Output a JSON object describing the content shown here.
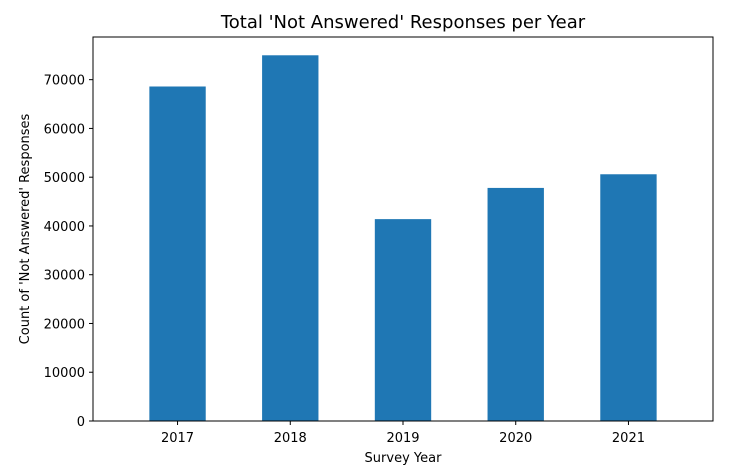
{
  "chart_data": {
    "type": "bar",
    "title": "Total 'Not Answered' Responses per Year",
    "xlabel": "Survey Year",
    "ylabel": "Count of 'Not Answered' Responses",
    "categories": [
      "2017",
      "2018",
      "2019",
      "2020",
      "2021"
    ],
    "values": [
      68600,
      75000,
      41400,
      47800,
      50600
    ],
    "ylim": [
      0,
      78750
    ],
    "yticks": [
      0,
      10000,
      20000,
      30000,
      40000,
      50000,
      60000,
      70000
    ],
    "grid": false,
    "legend": "none",
    "bar_color": "#1f77b4"
  }
}
